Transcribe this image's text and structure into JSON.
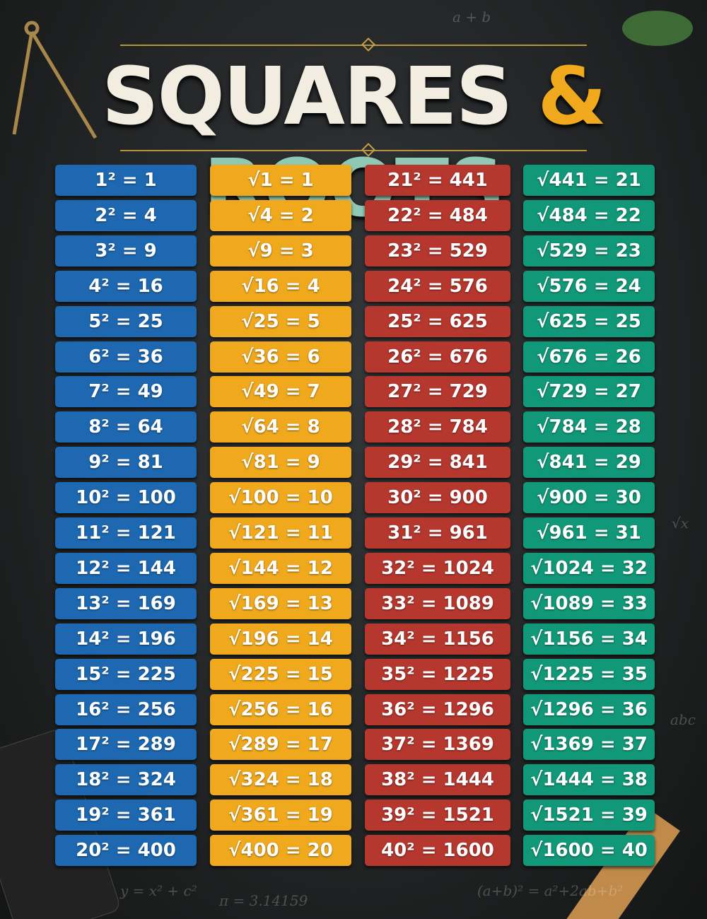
{
  "title": {
    "left": "SQUARES",
    "amp": "&",
    "right": "ROOTS"
  },
  "columns": [
    {
      "color": "#1d68b0",
      "items": [
        "1² = 1",
        "2² = 4",
        "3² = 9",
        "4² = 16",
        "5² = 25",
        "6² = 36",
        "7² = 49",
        "8² = 64",
        "9² = 81",
        "10² = 100",
        "11² = 121",
        "12² = 144",
        "13² = 169",
        "14² = 196",
        "15² = 225",
        "16² = 256",
        "17² = 289",
        "18² = 324",
        "19² = 361",
        "20² = 400"
      ]
    },
    {
      "color": "#f0a91c",
      "items": [
        "√1 = 1",
        "√4 = 2",
        "√9 = 3",
        "√16 = 4",
        "√25 = 5",
        "√36 = 6",
        "√49 = 7",
        "√64 = 8",
        "√81 = 9",
        "√100 = 10",
        "√121 = 11",
        "√144 = 12",
        "√169 = 13",
        "√196 = 14",
        "√225 = 15",
        "√256 = 16",
        "√289 = 17",
        "√324 = 18",
        "√361 = 19",
        "√400 = 20"
      ]
    },
    {
      "color": "#b5372e",
      "items": [
        "21² = 441",
        "22² = 484",
        "23² = 529",
        "24² = 576",
        "25² = 625",
        "26² = 676",
        "27² = 729",
        "28² = 784",
        "29² = 841",
        "30² = 900",
        "31² = 961",
        "32² = 1024",
        "33² = 1089",
        "34² = 1156",
        "35² = 1225",
        "36² = 1296",
        "37² = 1369",
        "38² = 1444",
        "39² = 1521",
        "40² = 1600"
      ]
    },
    {
      "color": "#119878",
      "items": [
        "√441 = 21",
        "√484 = 22",
        "√529 = 23",
        "√576 = 24",
        "√625 = 25",
        "√676 = 26",
        "√729 = 27",
        "√784 = 28",
        "√841 = 29",
        "√900 = 30",
        "√961 = 31",
        "√1024 = 32",
        "√1089 = 33",
        "√1156 = 34",
        "√1225 = 35",
        "√1296 = 36",
        "√1369 = 37",
        "√1444 = 38",
        "√1521 = 39",
        "√1600 = 40"
      ]
    }
  ],
  "chalk": [
    "a + b",
    "π = 3.14159",
    "(a+b)² = a²+2ab+b²",
    "y = x² + c²",
    "√x",
    "abc"
  ]
}
